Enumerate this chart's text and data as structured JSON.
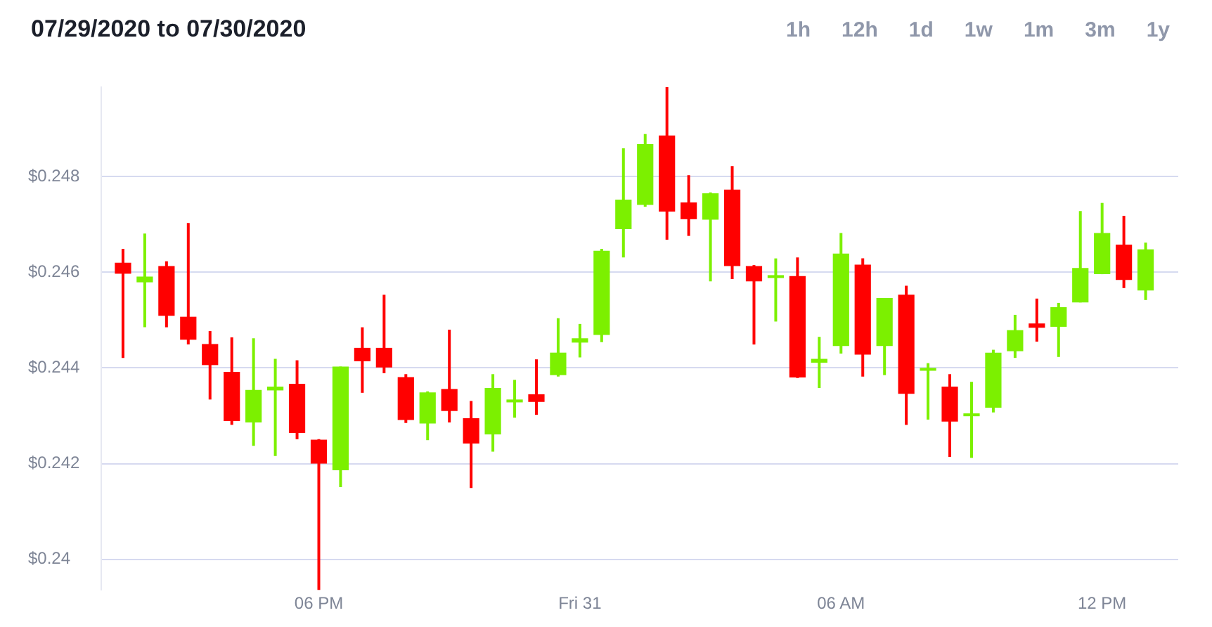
{
  "chart_data": {
    "type": "candlestick",
    "title": "07/29/2020 to 07/30/2020",
    "annotations": [
      "1h",
      "12h",
      "1d",
      "1w",
      "1m",
      "3m",
      "1y"
    ],
    "x": [
      "2020-07-30T13:30",
      "2020-07-30T14:00",
      "2020-07-30T14:30",
      "2020-07-30T15:00",
      "2020-07-30T15:30",
      "2020-07-30T16:00",
      "2020-07-30T16:30",
      "2020-07-30T17:00",
      "2020-07-30T17:30",
      "2020-07-30T18:00",
      "2020-07-30T18:30",
      "2020-07-30T19:00",
      "2020-07-30T19:30",
      "2020-07-30T20:00",
      "2020-07-30T20:30",
      "2020-07-30T21:00",
      "2020-07-30T21:30",
      "2020-07-30T22:00",
      "2020-07-30T22:30",
      "2020-07-30T23:00",
      "2020-07-30T23:30",
      "2020-07-31T00:00",
      "2020-07-31T00:30",
      "2020-07-31T01:00",
      "2020-07-31T01:30",
      "2020-07-31T02:00",
      "2020-07-31T02:30",
      "2020-07-31T03:00",
      "2020-07-31T03:30",
      "2020-07-31T04:00",
      "2020-07-31T04:30",
      "2020-07-31T05:00",
      "2020-07-31T05:30",
      "2020-07-31T06:00",
      "2020-07-31T06:30",
      "2020-07-31T07:00",
      "2020-07-31T07:30",
      "2020-07-31T08:00",
      "2020-07-31T08:30",
      "2020-07-31T09:00",
      "2020-07-31T09:30",
      "2020-07-31T10:00",
      "2020-07-31T10:30",
      "2020-07-31T11:00",
      "2020-07-31T11:30",
      "2020-07-31T12:00",
      "2020-07-31T12:30",
      "2020-07-31T13:00"
    ],
    "ohlc": [
      [
        0.2462,
        0.24649,
        0.24421,
        0.24597
      ],
      [
        0.24579,
        0.24681,
        0.24485,
        0.24591
      ],
      [
        0.24613,
        0.24623,
        0.24485,
        0.24509
      ],
      [
        0.24507,
        0.24703,
        0.24449,
        0.24459
      ],
      [
        0.2445,
        0.24477,
        0.24334,
        0.24406
      ],
      [
        0.24392,
        0.24464,
        0.24281,
        0.24289
      ],
      [
        0.24286,
        0.24462,
        0.24237,
        0.24354
      ],
      [
        0.24353,
        0.24419,
        0.24216,
        0.24361
      ],
      [
        0.24367,
        0.24416,
        0.24251,
        0.24264
      ],
      [
        0.2425,
        0.24251,
        0.23936,
        0.242
      ],
      [
        0.24186,
        0.24403,
        0.24151,
        0.24403
      ],
      [
        0.24442,
        0.24485,
        0.24348,
        0.24414
      ],
      [
        0.24442,
        0.24553,
        0.24389,
        0.24401
      ],
      [
        0.24381,
        0.24387,
        0.24285,
        0.24291
      ],
      [
        0.24284,
        0.24351,
        0.24249,
        0.24349
      ],
      [
        0.24356,
        0.2448,
        0.24286,
        0.2431
      ],
      [
        0.24295,
        0.24331,
        0.24149,
        0.24242
      ],
      [
        0.24261,
        0.24387,
        0.24225,
        0.24358
      ],
      [
        0.24328,
        0.24375,
        0.24296,
        0.24334
      ],
      [
        0.24345,
        0.24418,
        0.24302,
        0.24329
      ],
      [
        0.24385,
        0.24504,
        0.24382,
        0.24432
      ],
      [
        0.24453,
        0.24492,
        0.24422,
        0.24462
      ],
      [
        0.24469,
        0.24649,
        0.24454,
        0.24645
      ],
      [
        0.2469,
        0.24859,
        0.24631,
        0.24752
      ],
      [
        0.24741,
        0.24889,
        0.24737,
        0.24868
      ],
      [
        0.24886,
        0.24987,
        0.24668,
        0.24727
      ],
      [
        0.24746,
        0.24803,
        0.24676,
        0.24711
      ],
      [
        0.2471,
        0.24767,
        0.24581,
        0.24765
      ],
      [
        0.24773,
        0.24822,
        0.24586,
        0.24613
      ],
      [
        0.24613,
        0.24615,
        0.24449,
        0.24581
      ],
      [
        0.24588,
        0.24629,
        0.24497,
        0.24594
      ],
      [
        0.24592,
        0.24631,
        0.24379,
        0.2438
      ],
      [
        0.24411,
        0.24465,
        0.24358,
        0.24419
      ],
      [
        0.24446,
        0.24682,
        0.2443,
        0.24639
      ],
      [
        0.24616,
        0.24629,
        0.24382,
        0.24428
      ],
      [
        0.24446,
        0.24546,
        0.24385,
        0.24546
      ],
      [
        0.24553,
        0.24572,
        0.24281,
        0.24346
      ],
      [
        0.24395,
        0.2441,
        0.24292,
        0.244
      ],
      [
        0.24361,
        0.24387,
        0.24214,
        0.24288
      ],
      [
        0.24299,
        0.24371,
        0.24212,
        0.24305
      ],
      [
        0.24317,
        0.24438,
        0.24307,
        0.24432
      ],
      [
        0.24435,
        0.24511,
        0.24421,
        0.24479
      ],
      [
        0.24493,
        0.24545,
        0.24455,
        0.24484
      ],
      [
        0.24486,
        0.24536,
        0.24423,
        0.24527
      ],
      [
        0.24537,
        0.24728,
        0.24537,
        0.24609
      ],
      [
        0.24596,
        0.24745,
        0.24596,
        0.24682
      ],
      [
        0.24658,
        0.24718,
        0.24567,
        0.24584
      ],
      [
        0.24562,
        0.24662,
        0.24542,
        0.24648
      ]
    ],
    "colors": [
      "#ff0000",
      "#7cf000",
      "#ff0000",
      "#ff0000",
      "#ff0000",
      "#ff0000",
      "#7cf000",
      "#7cf000",
      "#ff0000",
      "#ff0000",
      "#7cf000",
      "#ff0000",
      "#ff0000",
      "#ff0000",
      "#7cf000",
      "#ff0000",
      "#ff0000",
      "#7cf000",
      "#7cf000",
      "#ff0000",
      "#7cf000",
      "#7cf000",
      "#7cf000",
      "#7cf000",
      "#7cf000",
      "#ff0000",
      "#ff0000",
      "#7cf000",
      "#ff0000",
      "#ff0000",
      "#7cf000",
      "#ff0000",
      "#7cf000",
      "#7cf000",
      "#ff0000",
      "#7cf000",
      "#ff0000",
      "#7cf000",
      "#ff0000",
      "#7cf000",
      "#7cf000",
      "#7cf000",
      "#ff0000",
      "#7cf000",
      "#7cf000",
      "#7cf000",
      "#ff0000",
      "#7cf000"
    ],
    "xlim": [
      "2020-07-30T13:00",
      "2020-07-31T13:45"
    ],
    "xticks": [
      {
        "value": "2020-07-30T18:00",
        "label": "06 PM"
      },
      {
        "value": "2020-07-31T00:00",
        "label": "Fri 31"
      },
      {
        "value": "2020-07-31T06:00",
        "label": "06 AM"
      },
      {
        "value": "2020-07-31T12:00",
        "label": "12 PM"
      }
    ],
    "yticks": [
      {
        "value": 0.24,
        "label": "$0.24"
      },
      {
        "value": 0.242,
        "label": "$0.242"
      },
      {
        "value": 0.244,
        "label": "$0.244"
      },
      {
        "value": 0.246,
        "label": "$0.246"
      },
      {
        "value": 0.248,
        "label": "$0.248"
      }
    ],
    "ylim": [
      0.23936,
      0.24987
    ],
    "grid": "y",
    "legend": false
  }
}
